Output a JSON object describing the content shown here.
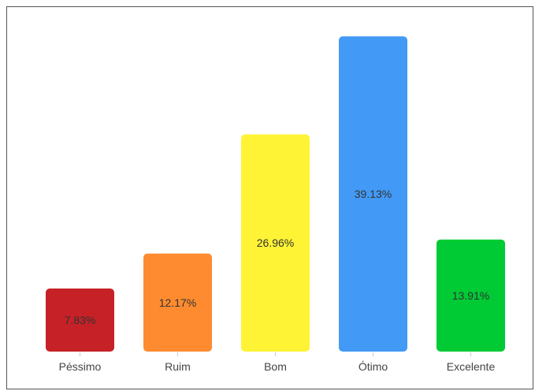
{
  "chart_data": {
    "type": "bar",
    "categories": [
      "Péssimo",
      "Ruim",
      "Bom",
      "Ótimo",
      "Excelente"
    ],
    "values": [
      7.83,
      12.17,
      26.96,
      39.13,
      13.91
    ],
    "value_labels": [
      "7.83%",
      "12.17%",
      "26.96%",
      "39.13%",
      "13.91%"
    ],
    "colors": [
      "#c62127",
      "#fe8b2f",
      "#fff336",
      "#4399f6",
      "#00cb34"
    ],
    "title": "",
    "xlabel": "",
    "ylabel": "",
    "ylim": [
      0,
      40
    ],
    "grid": false,
    "legend": "none"
  }
}
